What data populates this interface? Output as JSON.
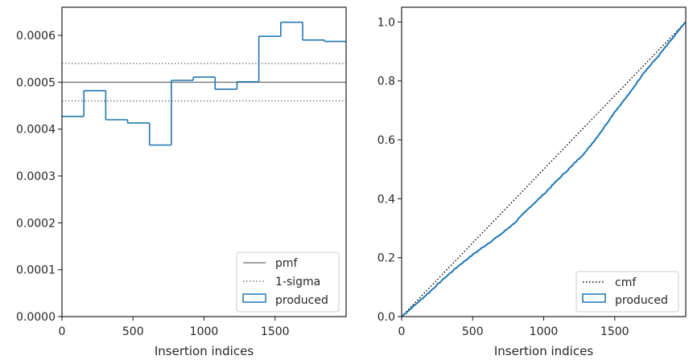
{
  "colors": {
    "produced": "#1f77b4",
    "reference": "#808080",
    "cmf": "#000000",
    "axes": "#262626"
  },
  "chart_data": [
    {
      "type": "bar",
      "style": "step-histogram",
      "xlabel": "Insertion indices",
      "ylabel": "",
      "xlim": [
        0,
        2000
      ],
      "ylim": [
        0,
        0.00066
      ],
      "xticks": [
        0,
        500,
        1000,
        1500
      ],
      "xtick_labels": [
        "0",
        "500",
        "1000",
        "1500"
      ],
      "yticks": [
        0,
        0.0001,
        0.0002,
        0.0003,
        0.0004,
        0.0005,
        0.0006
      ],
      "ytick_labels": [
        "0.0000",
        "0.0001",
        "0.0002",
        "0.0003",
        "0.0004",
        "0.0005",
        "0.0006"
      ],
      "bin_edges": [
        0,
        154,
        308,
        462,
        616,
        770,
        924,
        1078,
        1232,
        1386,
        1540,
        1694,
        1848,
        2000
      ],
      "values": [
        0.000427,
        0.000482,
        0.00042,
        0.000413,
        0.000366,
        0.000504,
        0.000511,
        0.000485,
        0.000501,
        0.000598,
        0.000628,
        0.00059,
        0.000587
      ],
      "pmf": 0.0005,
      "sigma_band": [
        0.00046,
        0.00054
      ],
      "legend": [
        "pmf",
        "1-sigma",
        "produced"
      ],
      "legend_loc": "lower-right",
      "grid": false
    },
    {
      "type": "line",
      "style": "cumulative-step",
      "xlabel": "Insertion indices",
      "ylabel": "",
      "xlim": [
        0,
        2000
      ],
      "ylim": [
        0,
        1.05
      ],
      "xticks": [
        0,
        500,
        1000,
        1500
      ],
      "xtick_labels": [
        "0",
        "500",
        "1000",
        "1500"
      ],
      "yticks": [
        0,
        0.2,
        0.4,
        0.6,
        0.8,
        1.0
      ],
      "ytick_labels": [
        "0.0",
        "0.2",
        "0.4",
        "0.6",
        "0.8",
        "1.0"
      ],
      "cmf": {
        "x": [
          0,
          2000
        ],
        "y": [
          0,
          1.0
        ]
      },
      "produced": {
        "x": [
          0,
          100,
          200,
          300,
          400,
          500,
          600,
          700,
          800,
          900,
          1000,
          1100,
          1200,
          1300,
          1400,
          1500,
          1600,
          1700,
          1800,
          1900,
          2000
        ],
        "y": [
          0,
          0.042,
          0.085,
          0.13,
          0.172,
          0.21,
          0.245,
          0.28,
          0.32,
          0.37,
          0.415,
          0.465,
          0.512,
          0.562,
          0.625,
          0.695,
          0.755,
          0.825,
          0.88,
          0.94,
          1.0
        ]
      },
      "legend": [
        "cmf",
        "produced"
      ],
      "legend_loc": "lower-right",
      "grid": false
    }
  ]
}
